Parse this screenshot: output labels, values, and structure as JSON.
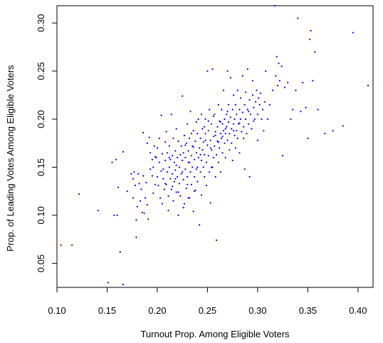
{
  "chart_data": {
    "type": "scatter",
    "title": "",
    "xlabel": "Turnout Prop. Among Eligible Voters",
    "ylabel": "Prop. of Leading Votes Among Eligible Voters",
    "xlim": [
      0.1,
      0.415
    ],
    "ylim": [
      0.025,
      0.318
    ],
    "xticks": [
      "0.10",
      "0.15",
      "0.20",
      "0.25",
      "0.30",
      "0.35",
      "0.40"
    ],
    "yticks": [
      "0.05",
      "0.10",
      "0.15",
      "0.20",
      "0.25",
      "0.30"
    ],
    "xtick_values": [
      0.1,
      0.15,
      0.2,
      0.25,
      0.3,
      0.35,
      0.4
    ],
    "ytick_values": [
      0.05,
      0.1,
      0.15,
      0.2,
      0.25,
      0.3
    ],
    "grid": false,
    "legend": "none",
    "point_color": "#0000ff",
    "points": [
      [
        0.104,
        0.069
      ],
      [
        0.115,
        0.069
      ],
      [
        0.122,
        0.122
      ],
      [
        0.141,
        0.105
      ],
      [
        0.151,
        0.03
      ],
      [
        0.155,
        0.155
      ],
      [
        0.157,
        0.1
      ],
      [
        0.159,
        0.158
      ],
      [
        0.16,
        0.1
      ],
      [
        0.161,
        0.129
      ],
      [
        0.163,
        0.062
      ],
      [
        0.166,
        0.166
      ],
      [
        0.166,
        0.028
      ],
      [
        0.17,
        0.125
      ],
      [
        0.174,
        0.143
      ],
      [
        0.176,
        0.118
      ],
      [
        0.176,
        0.138
      ],
      [
        0.177,
        0.145
      ],
      [
        0.178,
        0.131
      ],
      [
        0.179,
        0.095
      ],
      [
        0.179,
        0.077
      ],
      [
        0.18,
        0.109
      ],
      [
        0.181,
        0.143
      ],
      [
        0.182,
        0.133
      ],
      [
        0.183,
        0.115
      ],
      [
        0.184,
        0.127
      ],
      [
        0.185,
        0.103
      ],
      [
        0.186,
        0.141
      ],
      [
        0.186,
        0.186
      ],
      [
        0.187,
        0.102
      ],
      [
        0.188,
        0.118
      ],
      [
        0.189,
        0.134
      ],
      [
        0.19,
        0.111
      ],
      [
        0.19,
        0.175
      ],
      [
        0.191,
        0.096
      ],
      [
        0.192,
        0.181
      ],
      [
        0.193,
        0.148
      ],
      [
        0.193,
        0.165
      ],
      [
        0.195,
        0.141
      ],
      [
        0.195,
        0.158
      ],
      [
        0.196,
        0.123
      ],
      [
        0.196,
        0.15
      ],
      [
        0.197,
        0.172
      ],
      [
        0.198,
        0.132
      ],
      [
        0.198,
        0.161
      ],
      [
        0.199,
        0.16
      ],
      [
        0.2,
        0.14
      ],
      [
        0.2,
        0.17
      ],
      [
        0.201,
        0.131
      ],
      [
        0.202,
        0.155
      ],
      [
        0.202,
        0.18
      ],
      [
        0.203,
        0.118
      ],
      [
        0.204,
        0.204
      ],
      [
        0.204,
        0.146
      ],
      [
        0.205,
        0.164
      ],
      [
        0.205,
        0.112
      ],
      [
        0.206,
        0.138
      ],
      [
        0.206,
        0.148
      ],
      [
        0.207,
        0.127
      ],
      [
        0.208,
        0.157
      ],
      [
        0.208,
        0.176
      ],
      [
        0.209,
        0.132
      ],
      [
        0.209,
        0.187
      ],
      [
        0.21,
        0.145
      ],
      [
        0.21,
        0.165
      ],
      [
        0.211,
        0.12
      ],
      [
        0.211,
        0.105
      ],
      [
        0.212,
        0.15
      ],
      [
        0.212,
        0.172
      ],
      [
        0.213,
        0.138
      ],
      [
        0.213,
        0.158
      ],
      [
        0.214,
        0.127
      ],
      [
        0.214,
        0.205
      ],
      [
        0.215,
        0.143
      ],
      [
        0.215,
        0.162
      ],
      [
        0.216,
        0.115
      ],
      [
        0.216,
        0.18
      ],
      [
        0.217,
        0.135
      ],
      [
        0.217,
        0.155
      ],
      [
        0.218,
        0.147
      ],
      [
        0.218,
        0.167
      ],
      [
        0.219,
        0.124
      ],
      [
        0.219,
        0.19
      ],
      [
        0.22,
        0.14
      ],
      [
        0.22,
        0.16
      ],
      [
        0.221,
        0.1
      ],
      [
        0.221,
        0.177
      ],
      [
        0.222,
        0.15
      ],
      [
        0.222,
        0.133
      ],
      [
        0.223,
        0.163
      ],
      [
        0.223,
        0.12
      ],
      [
        0.224,
        0.143
      ],
      [
        0.224,
        0.172
      ],
      [
        0.225,
        0.157
      ],
      [
        0.225,
        0.224
      ],
      [
        0.226,
        0.137
      ],
      [
        0.226,
        0.165
      ],
      [
        0.227,
        0.112
      ],
      [
        0.227,
        0.183
      ],
      [
        0.228,
        0.148
      ],
      [
        0.228,
        0.16
      ],
      [
        0.229,
        0.128
      ],
      [
        0.229,
        0.175
      ],
      [
        0.23,
        0.14
      ],
      [
        0.23,
        0.195
      ],
      [
        0.231,
        0.155
      ],
      [
        0.231,
        0.167
      ],
      [
        0.232,
        0.118
      ],
      [
        0.232,
        0.18
      ],
      [
        0.233,
        0.145
      ],
      [
        0.233,
        0.208
      ],
      [
        0.234,
        0.132
      ],
      [
        0.234,
        0.162
      ],
      [
        0.235,
        0.172
      ],
      [
        0.235,
        0.15
      ],
      [
        0.236,
        0.104
      ],
      [
        0.236,
        0.188
      ],
      [
        0.237,
        0.14
      ],
      [
        0.237,
        0.158
      ],
      [
        0.238,
        0.126
      ],
      [
        0.238,
        0.177
      ],
      [
        0.239,
        0.165
      ],
      [
        0.239,
        0.148
      ],
      [
        0.24,
        0.185
      ],
      [
        0.24,
        0.135
      ],
      [
        0.241,
        0.16
      ],
      [
        0.241,
        0.2
      ],
      [
        0.242,
        0.17
      ],
      [
        0.242,
        0.09
      ],
      [
        0.243,
        0.145
      ],
      [
        0.243,
        0.18
      ],
      [
        0.244,
        0.157
      ],
      [
        0.244,
        0.121
      ],
      [
        0.245,
        0.19
      ],
      [
        0.245,
        0.168
      ],
      [
        0.246,
        0.15
      ],
      [
        0.246,
        0.176
      ],
      [
        0.247,
        0.14
      ],
      [
        0.247,
        0.163
      ],
      [
        0.248,
        0.185
      ],
      [
        0.248,
        0.2
      ],
      [
        0.249,
        0.155
      ],
      [
        0.249,
        0.131
      ],
      [
        0.25,
        0.173
      ],
      [
        0.25,
        0.25
      ],
      [
        0.251,
        0.162
      ],
      [
        0.251,
        0.188
      ],
      [
        0.252,
        0.145
      ],
      [
        0.252,
        0.21
      ],
      [
        0.253,
        0.178
      ],
      [
        0.253,
        0.113
      ],
      [
        0.254,
        0.168
      ],
      [
        0.254,
        0.195
      ],
      [
        0.255,
        0.15
      ],
      [
        0.255,
        0.252
      ],
      [
        0.256,
        0.182
      ],
      [
        0.256,
        0.16
      ],
      [
        0.257,
        0.172
      ],
      [
        0.257,
        0.205
      ],
      [
        0.258,
        0.14
      ],
      [
        0.258,
        0.187
      ],
      [
        0.259,
        0.163
      ],
      [
        0.259,
        0.074
      ],
      [
        0.26,
        0.192
      ],
      [
        0.26,
        0.177
      ],
      [
        0.261,
        0.155
      ],
      [
        0.261,
        0.215
      ],
      [
        0.262,
        0.17
      ],
      [
        0.262,
        0.198
      ],
      [
        0.263,
        0.185
      ],
      [
        0.263,
        0.145
      ],
      [
        0.264,
        0.18
      ],
      [
        0.264,
        0.21
      ],
      [
        0.265,
        0.165
      ],
      [
        0.265,
        0.195
      ],
      [
        0.266,
        0.188
      ],
      [
        0.266,
        0.23
      ],
      [
        0.267,
        0.2
      ],
      [
        0.267,
        0.175
      ],
      [
        0.268,
        0.185
      ],
      [
        0.268,
        0.16
      ],
      [
        0.269,
        0.205
      ],
      [
        0.269,
        0.192
      ],
      [
        0.27,
        0.178
      ],
      [
        0.27,
        0.25
      ],
      [
        0.271,
        0.197
      ],
      [
        0.271,
        0.215
      ],
      [
        0.272,
        0.185
      ],
      [
        0.272,
        0.168
      ],
      [
        0.273,
        0.202
      ],
      [
        0.273,
        0.243
      ],
      [
        0.274,
        0.19
      ],
      [
        0.274,
        0.175
      ],
      [
        0.275,
        0.21
      ],
      [
        0.275,
        0.157
      ],
      [
        0.276,
        0.195
      ],
      [
        0.276,
        0.225
      ],
      [
        0.277,
        0.183
      ],
      [
        0.277,
        0.2
      ],
      [
        0.278,
        0.215
      ],
      [
        0.278,
        0.17
      ],
      [
        0.279,
        0.188
      ],
      [
        0.279,
        0.205
      ],
      [
        0.28,
        0.23
      ],
      [
        0.28,
        0.18
      ],
      [
        0.281,
        0.195
      ],
      [
        0.282,
        0.21
      ],
      [
        0.282,
        0.165
      ],
      [
        0.283,
        0.2
      ],
      [
        0.283,
        0.222
      ],
      [
        0.284,
        0.187
      ],
      [
        0.285,
        0.207
      ],
      [
        0.285,
        0.245
      ],
      [
        0.286,
        0.192
      ],
      [
        0.287,
        0.215
      ],
      [
        0.287,
        0.148
      ],
      [
        0.288,
        0.2
      ],
      [
        0.288,
        0.228
      ],
      [
        0.289,
        0.185
      ],
      [
        0.29,
        0.21
      ],
      [
        0.29,
        0.252
      ],
      [
        0.291,
        0.195
      ],
      [
        0.292,
        0.22
      ],
      [
        0.292,
        0.14
      ],
      [
        0.293,
        0.205
      ],
      [
        0.294,
        0.19
      ],
      [
        0.295,
        0.225
      ],
      [
        0.295,
        0.24
      ],
      [
        0.296,
        0.212
      ],
      [
        0.297,
        0.2
      ],
      [
        0.298,
        0.218
      ],
      [
        0.299,
        0.23
      ],
      [
        0.3,
        0.205
      ],
      [
        0.3,
        0.178
      ],
      [
        0.301,
        0.222
      ],
      [
        0.302,
        0.215
      ],
      [
        0.303,
        0.227
      ],
      [
        0.304,
        0.2
      ],
      [
        0.305,
        0.21
      ],
      [
        0.306,
        0.188
      ],
      [
        0.307,
        0.218
      ],
      [
        0.308,
        0.25
      ],
      [
        0.31,
        0.2
      ],
      [
        0.312,
        0.215
      ],
      [
        0.315,
        0.23
      ],
      [
        0.317,
        0.318
      ],
      [
        0.318,
        0.245
      ],
      [
        0.319,
        0.265
      ],
      [
        0.32,
        0.235
      ],
      [
        0.321,
        0.258
      ],
      [
        0.322,
        0.24
      ],
      [
        0.324,
        0.255
      ],
      [
        0.325,
        0.162
      ],
      [
        0.327,
        0.233
      ],
      [
        0.33,
        0.238
      ],
      [
        0.333,
        0.2
      ],
      [
        0.335,
        0.21
      ],
      [
        0.338,
        0.23
      ],
      [
        0.34,
        0.305
      ],
      [
        0.343,
        0.208
      ],
      [
        0.345,
        0.238
      ],
      [
        0.348,
        0.212
      ],
      [
        0.35,
        0.18
      ],
      [
        0.352,
        0.283
      ],
      [
        0.353,
        0.292
      ],
      [
        0.355,
        0.24
      ],
      [
        0.357,
        0.27
      ],
      [
        0.36,
        0.21
      ],
      [
        0.367,
        0.185
      ],
      [
        0.375,
        0.188
      ],
      [
        0.385,
        0.193
      ],
      [
        0.395,
        0.29
      ],
      [
        0.41,
        0.235
      ],
      [
        0.232,
        0.155
      ],
      [
        0.236,
        0.171
      ],
      [
        0.243,
        0.163
      ],
      [
        0.248,
        0.178
      ],
      [
        0.253,
        0.17
      ],
      [
        0.258,
        0.183
      ],
      [
        0.261,
        0.176
      ],
      [
        0.265,
        0.182
      ],
      [
        0.268,
        0.19
      ],
      [
        0.254,
        0.15
      ],
      [
        0.24,
        0.15
      ],
      [
        0.23,
        0.132
      ],
      [
        0.225,
        0.145
      ],
      [
        0.218,
        0.138
      ],
      [
        0.212,
        0.16
      ],
      [
        0.208,
        0.133
      ],
      [
        0.247,
        0.192
      ],
      [
        0.251,
        0.198
      ],
      [
        0.256,
        0.203
      ],
      [
        0.263,
        0.197
      ],
      [
        0.27,
        0.208
      ],
      [
        0.276,
        0.188
      ],
      [
        0.282,
        0.196
      ],
      [
        0.286,
        0.18
      ],
      [
        0.291,
        0.208
      ],
      [
        0.296,
        0.198
      ],
      [
        0.228,
        0.173
      ],
      [
        0.234,
        0.185
      ],
      [
        0.239,
        0.197
      ],
      [
        0.244,
        0.205
      ],
      [
        0.237,
        0.125
      ],
      [
        0.231,
        0.118
      ],
      [
        0.226,
        0.108
      ],
      [
        0.221,
        0.124
      ],
      [
        0.215,
        0.13
      ],
      [
        0.219,
        0.152
      ]
    ]
  }
}
